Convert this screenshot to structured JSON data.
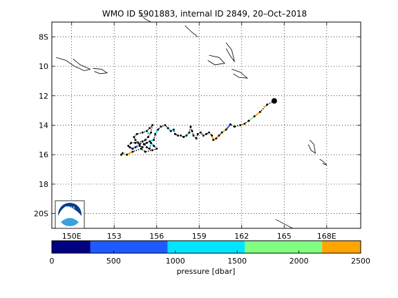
{
  "title": "WMO ID 5901883, internal ID 2849, 20–Oct–2018",
  "logo_text": "NOAA",
  "map": {
    "x_ticks": [
      {
        "lon": 150,
        "label": "150E"
      },
      {
        "lon": 153,
        "label": "153"
      },
      {
        "lon": 156,
        "label": "156"
      },
      {
        "lon": 159,
        "label": "159"
      },
      {
        "lon": 162,
        "label": "162"
      },
      {
        "lon": 165,
        "label": "165"
      },
      {
        "lon": 168,
        "label": "168E"
      }
    ],
    "y_ticks": [
      {
        "lat": -8,
        "label": "8S"
      },
      {
        "lat": -10,
        "label": "10"
      },
      {
        "lat": -12,
        "label": "12"
      },
      {
        "lat": -14,
        "label": "14"
      },
      {
        "lat": -16,
        "label": "16"
      },
      {
        "lat": -18,
        "label": "18"
      },
      {
        "lat": -20,
        "label": "20S"
      }
    ],
    "lon_range": [
      148.6,
      170.4
    ],
    "lat_range": [
      -21.0,
      -7.0
    ],
    "grid": true,
    "land_color": "#000000",
    "track_color": "#000000",
    "last_position": {
      "lon": 164.3,
      "lat": -12.35
    },
    "coastlines": [
      [
        [
          148.9,
          -9.4
        ],
        [
          149.6,
          -9.6
        ],
        [
          150.2,
          -10.0
        ],
        [
          150.9,
          -10.3
        ],
        [
          151.3,
          -10.2
        ],
        [
          150.6,
          -9.9
        ],
        [
          150.1,
          -9.5
        ]
      ],
      [
        [
          151.5,
          -10.15
        ],
        [
          152.1,
          -10.2
        ],
        [
          152.5,
          -10.45
        ],
        [
          152.0,
          -10.5
        ],
        [
          151.6,
          -10.35
        ]
      ],
      [
        [
          154.8,
          -6.4
        ],
        [
          155.2,
          -6.8
        ],
        [
          155.6,
          -7.0
        ]
      ],
      [
        [
          158.0,
          -7.25
        ],
        [
          158.5,
          -7.7
        ],
        [
          158.9,
          -8.0
        ]
      ],
      [
        [
          159.7,
          -9.25
        ],
        [
          160.4,
          -9.4
        ],
        [
          160.8,
          -9.8
        ],
        [
          160.1,
          -9.9
        ],
        [
          159.6,
          -9.6
        ]
      ],
      [
        [
          160.9,
          -8.4
        ],
        [
          161.3,
          -8.9
        ],
        [
          161.5,
          -9.7
        ],
        [
          161.2,
          -9.3
        ],
        [
          160.9,
          -8.8
        ]
      ],
      [
        [
          161.3,
          -10.2
        ],
        [
          161.9,
          -10.4
        ],
        [
          162.4,
          -10.8
        ],
        [
          161.8,
          -10.75
        ],
        [
          161.4,
          -10.5
        ]
      ],
      [
        [
          166.8,
          -15.0
        ],
        [
          167.1,
          -15.3
        ],
        [
          167.2,
          -15.9
        ],
        [
          166.9,
          -15.7
        ],
        [
          166.7,
          -15.3
        ]
      ],
      [
        [
          167.5,
          -16.3
        ],
        [
          167.8,
          -16.5
        ],
        [
          168.0,
          -16.7
        ],
        [
          167.7,
          -16.6
        ]
      ],
      [
        [
          164.4,
          -20.4
        ],
        [
          165.2,
          -20.8
        ],
        [
          165.6,
          -21.0
        ]
      ]
    ],
    "track": [
      [
        164.3,
        -12.35
      ],
      [
        163.8,
        -12.6
      ],
      [
        163.3,
        -13.1
      ],
      [
        162.9,
        -13.4
      ],
      [
        162.5,
        -13.7
      ],
      [
        162.2,
        -13.9
      ],
      [
        161.9,
        -14.0
      ],
      [
        161.5,
        -14.1
      ],
      [
        161.2,
        -13.95
      ],
      [
        160.9,
        -14.3
      ],
      [
        160.6,
        -14.5
      ],
      [
        160.4,
        -14.7
      ],
      [
        160.2,
        -14.9
      ],
      [
        160.0,
        -15.0
      ],
      [
        159.9,
        -14.7
      ],
      [
        159.7,
        -14.5
      ],
      [
        159.5,
        -14.6
      ],
      [
        159.3,
        -14.7
      ],
      [
        159.1,
        -14.5
      ],
      [
        158.9,
        -14.6
      ],
      [
        158.8,
        -14.9
      ],
      [
        158.6,
        -14.7
      ],
      [
        158.5,
        -14.4
      ],
      [
        158.4,
        -14.1
      ],
      [
        158.3,
        -14.5
      ],
      [
        158.1,
        -14.7
      ],
      [
        157.9,
        -14.8
      ],
      [
        157.7,
        -14.7
      ],
      [
        157.5,
        -14.7
      ],
      [
        157.3,
        -14.6
      ],
      [
        157.2,
        -14.3
      ],
      [
        157.0,
        -14.4
      ],
      [
        156.8,
        -14.2
      ],
      [
        156.6,
        -14.0
      ],
      [
        156.3,
        -14.1
      ],
      [
        156.1,
        -14.3
      ],
      [
        155.9,
        -14.6
      ],
      [
        155.8,
        -15.0
      ],
      [
        155.5,
        -15.1
      ],
      [
        155.3,
        -15.2
      ],
      [
        155.1,
        -15.3
      ],
      [
        155.0,
        -15.5
      ],
      [
        154.8,
        -15.4
      ],
      [
        154.7,
        -15.2
      ],
      [
        154.5,
        -15.0
      ],
      [
        154.4,
        -14.8
      ],
      [
        154.6,
        -14.6
      ],
      [
        155.0,
        -14.5
      ],
      [
        155.3,
        -14.4
      ],
      [
        155.5,
        -14.2
      ],
      [
        155.7,
        -14.0
      ],
      [
        155.6,
        -14.5
      ],
      [
        155.4,
        -14.8
      ],
      [
        155.2,
        -15.0
      ],
      [
        154.8,
        -15.3
      ],
      [
        154.5,
        -15.5
      ],
      [
        154.3,
        -15.6
      ],
      [
        154.1,
        -15.5
      ],
      [
        154.0,
        -15.4
      ],
      [
        154.2,
        -15.2
      ],
      [
        154.5,
        -15.2
      ],
      [
        155.0,
        -15.1
      ],
      [
        155.3,
        -15.5
      ],
      [
        155.5,
        -15.6
      ],
      [
        155.6,
        -15.2
      ],
      [
        155.8,
        -15.4
      ],
      [
        156.0,
        -15.6
      ],
      [
        155.7,
        -15.7
      ],
      [
        155.2,
        -15.8
      ],
      [
        154.9,
        -15.6
      ],
      [
        154.3,
        -15.8
      ],
      [
        153.9,
        -16.0
      ],
      [
        153.6,
        -15.9
      ],
      [
        153.5,
        -16.0
      ]
    ],
    "colored_segments": [
      {
        "from": 2,
        "to": 3,
        "color": "#ffa500"
      },
      {
        "from": 3,
        "to": 4,
        "color": "#80ff80"
      },
      {
        "from": 9,
        "to": 10,
        "color": "#ffa500"
      },
      {
        "from": 12,
        "to": 13,
        "color": "#ffa500"
      },
      {
        "from": 13,
        "to": 14,
        "color": "#ffa500"
      },
      {
        "from": 24,
        "to": 25,
        "color": "#00e5ff"
      },
      {
        "from": 35,
        "to": 36,
        "color": "#00e5ff"
      },
      {
        "from": 37,
        "to": 38,
        "color": "#00e5ff"
      },
      {
        "from": 39,
        "to": 40,
        "color": "#1e5bff"
      },
      {
        "from": 45,
        "to": 46,
        "color": "#00e5ff"
      },
      {
        "from": 56,
        "to": 57,
        "color": "#1e5bff"
      },
      {
        "from": 64,
        "to": 65,
        "color": "#00e5ff"
      },
      {
        "from": 70,
        "to": 71,
        "color": "#ffa500"
      },
      {
        "from": 8,
        "to": 9,
        "color": "#1e5bff"
      },
      {
        "from": 30,
        "to": 31,
        "color": "#00e5ff"
      }
    ],
    "highlight_points": [
      {
        "lon": 163.6,
        "lat": -12.75,
        "color": "#ffa500"
      },
      {
        "lon": 162.1,
        "lat": -13.95,
        "color": "#ffa500"
      },
      {
        "lon": 160.3,
        "lat": -14.8,
        "color": "#ffa500"
      },
      {
        "lon": 156.9,
        "lat": -14.3,
        "color": "#00e5ff"
      },
      {
        "lon": 155.4,
        "lat": -14.55,
        "color": "#00e5ff"
      },
      {
        "lon": 154.6,
        "lat": -15.45,
        "color": "#1e5bff"
      },
      {
        "lon": 153.7,
        "lat": -15.95,
        "color": "#ffa500"
      }
    ]
  },
  "colorbar": {
    "label": "pressure [dbar]",
    "range": [
      0,
      2500
    ],
    "ticks": [
      {
        "value": 0,
        "label": "0"
      },
      {
        "value": 500,
        "label": "500"
      },
      {
        "value": 1000,
        "label": "1000"
      },
      {
        "value": 1500,
        "label": "1500"
      },
      {
        "value": 2000,
        "label": "2000"
      },
      {
        "value": 2500,
        "label": "2500"
      }
    ],
    "bands": [
      {
        "from": 0,
        "to": 312.5,
        "color": "#000080"
      },
      {
        "from": 312.5,
        "to": 937.5,
        "color": "#1e5bff"
      },
      {
        "from": 937.5,
        "to": 1562.5,
        "color": "#00e5ff"
      },
      {
        "from": 1562.5,
        "to": 2187.5,
        "color": "#80ff80"
      },
      {
        "from": 2187.5,
        "to": 2500,
        "color": "#ffa500"
      }
    ]
  }
}
